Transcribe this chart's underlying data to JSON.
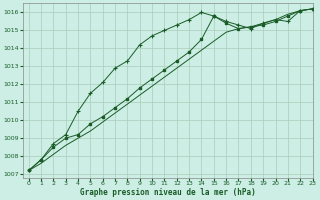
{
  "title": "Graphe pression niveau de la mer (hPa)",
  "background_color": "#cceee4",
  "grid_color": "#aaccbb",
  "line_color": "#1a5c28",
  "xlim": [
    -0.5,
    23
  ],
  "ylim": [
    1006.8,
    1016.5
  ],
  "yticks": [
    1007,
    1008,
    1009,
    1010,
    1011,
    1012,
    1013,
    1014,
    1015,
    1016
  ],
  "xticks": [
    0,
    1,
    2,
    3,
    4,
    5,
    6,
    7,
    8,
    9,
    10,
    11,
    12,
    13,
    14,
    15,
    16,
    17,
    18,
    19,
    20,
    21,
    22,
    23
  ],
  "series1_marked": {
    "x": [
      0,
      1,
      2,
      3,
      4,
      5,
      6,
      7,
      8,
      9,
      10,
      11,
      12,
      13,
      14,
      15,
      16,
      17,
      18,
      19,
      20,
      21,
      22,
      23
    ],
    "y": [
      1007.2,
      1007.8,
      1008.7,
      1009.2,
      1010.5,
      1011.5,
      1012.1,
      1012.9,
      1013.3,
      1014.2,
      1014.7,
      1015.0,
      1015.3,
      1015.6,
      1016.0,
      1015.8,
      1015.5,
      1015.3,
      1015.1,
      1015.4,
      1015.6,
      1015.5,
      1016.1,
      1016.2
    ]
  },
  "series2_marked": {
    "x": [
      0,
      1,
      2,
      3,
      4,
      5,
      6,
      7,
      8,
      9,
      10,
      11,
      12,
      13,
      14,
      15,
      16,
      17,
      18,
      19,
      20,
      21,
      22,
      23
    ],
    "y": [
      1007.2,
      1007.8,
      1008.5,
      1009.0,
      1009.2,
      1009.8,
      1010.2,
      1010.7,
      1011.2,
      1011.8,
      1012.3,
      1012.8,
      1013.3,
      1013.8,
      1014.5,
      1015.8,
      1015.4,
      1015.1,
      1015.2,
      1015.3,
      1015.5,
      1015.8,
      1016.1,
      1016.2
    ]
  },
  "series3_plain": {
    "x": [
      0,
      1,
      2,
      3,
      4,
      5,
      6,
      7,
      8,
      9,
      10,
      11,
      12,
      13,
      14,
      15,
      16,
      17,
      18,
      19,
      20,
      21,
      22,
      23
    ],
    "y": [
      1007.2,
      1007.6,
      1008.1,
      1008.6,
      1009.0,
      1009.4,
      1009.9,
      1010.4,
      1010.9,
      1011.4,
      1011.9,
      1012.4,
      1012.9,
      1013.4,
      1013.9,
      1014.4,
      1014.9,
      1015.1,
      1015.2,
      1015.4,
      1015.6,
      1015.9,
      1016.1,
      1016.2
    ]
  }
}
